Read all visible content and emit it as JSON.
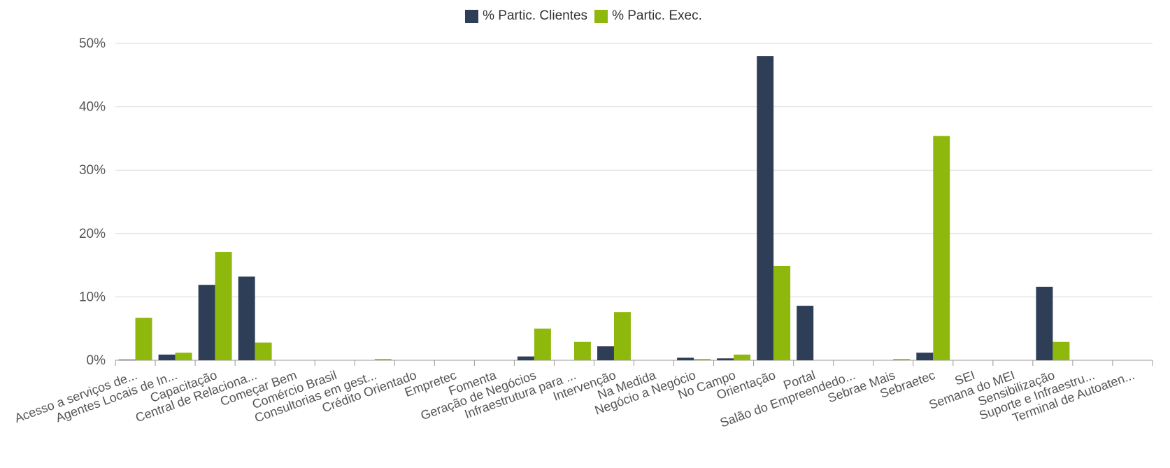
{
  "legend": {
    "series1": "% Partic. Clientes",
    "series2": "% Partic. Exec."
  },
  "colors": {
    "series1": "#2f3e57",
    "series2": "#8fb80d",
    "grid": "#d9d9d9",
    "axis": "#999999"
  },
  "chart_data": {
    "type": "bar",
    "categories": [
      "Acesso a serviços de...",
      "Agentes Locais de In...",
      "Capacitação",
      "Central de Relaciona...",
      "Começar Bem",
      "Comércio Brasil",
      "Consultorias em gest...",
      "Crédito Orientado",
      "Empretec",
      "Fomenta",
      "Geração de Negócios",
      "Infraestrutura para ...",
      "Intervenção",
      "Na Medida",
      "Negócio a Negócio",
      "No Campo",
      "Orientação",
      "Portal",
      "Salão do Empreendedo...",
      "Sebrae Mais",
      "Sebraetec",
      "SEI",
      "Semana do MEI",
      "Sensibilização",
      "Suporte e Infraestru...",
      "Terminal de Autoaten..."
    ],
    "series": [
      {
        "name": "% Partic. Clientes",
        "values": [
          0.1,
          0.9,
          11.9,
          13.2,
          0,
          0,
          0,
          0,
          0,
          0,
          0.6,
          0,
          2.2,
          0,
          0.4,
          0.3,
          48.0,
          8.6,
          0,
          0,
          1.2,
          0,
          0,
          11.6,
          0,
          0
        ]
      },
      {
        "name": "% Partic. Exec.",
        "values": [
          6.7,
          1.2,
          17.1,
          2.8,
          0,
          0,
          0.2,
          0,
          0,
          0,
          5.0,
          2.9,
          7.6,
          0,
          0.2,
          0.9,
          14.9,
          0,
          0,
          0.2,
          35.4,
          0,
          0,
          2.9,
          0,
          0
        ]
      }
    ],
    "y_ticks": [
      "0%",
      "10%",
      "20%",
      "30%",
      "40%",
      "50%"
    ],
    "ylim": [
      0,
      50
    ],
    "grid": true,
    "legend_position": "top-center"
  }
}
